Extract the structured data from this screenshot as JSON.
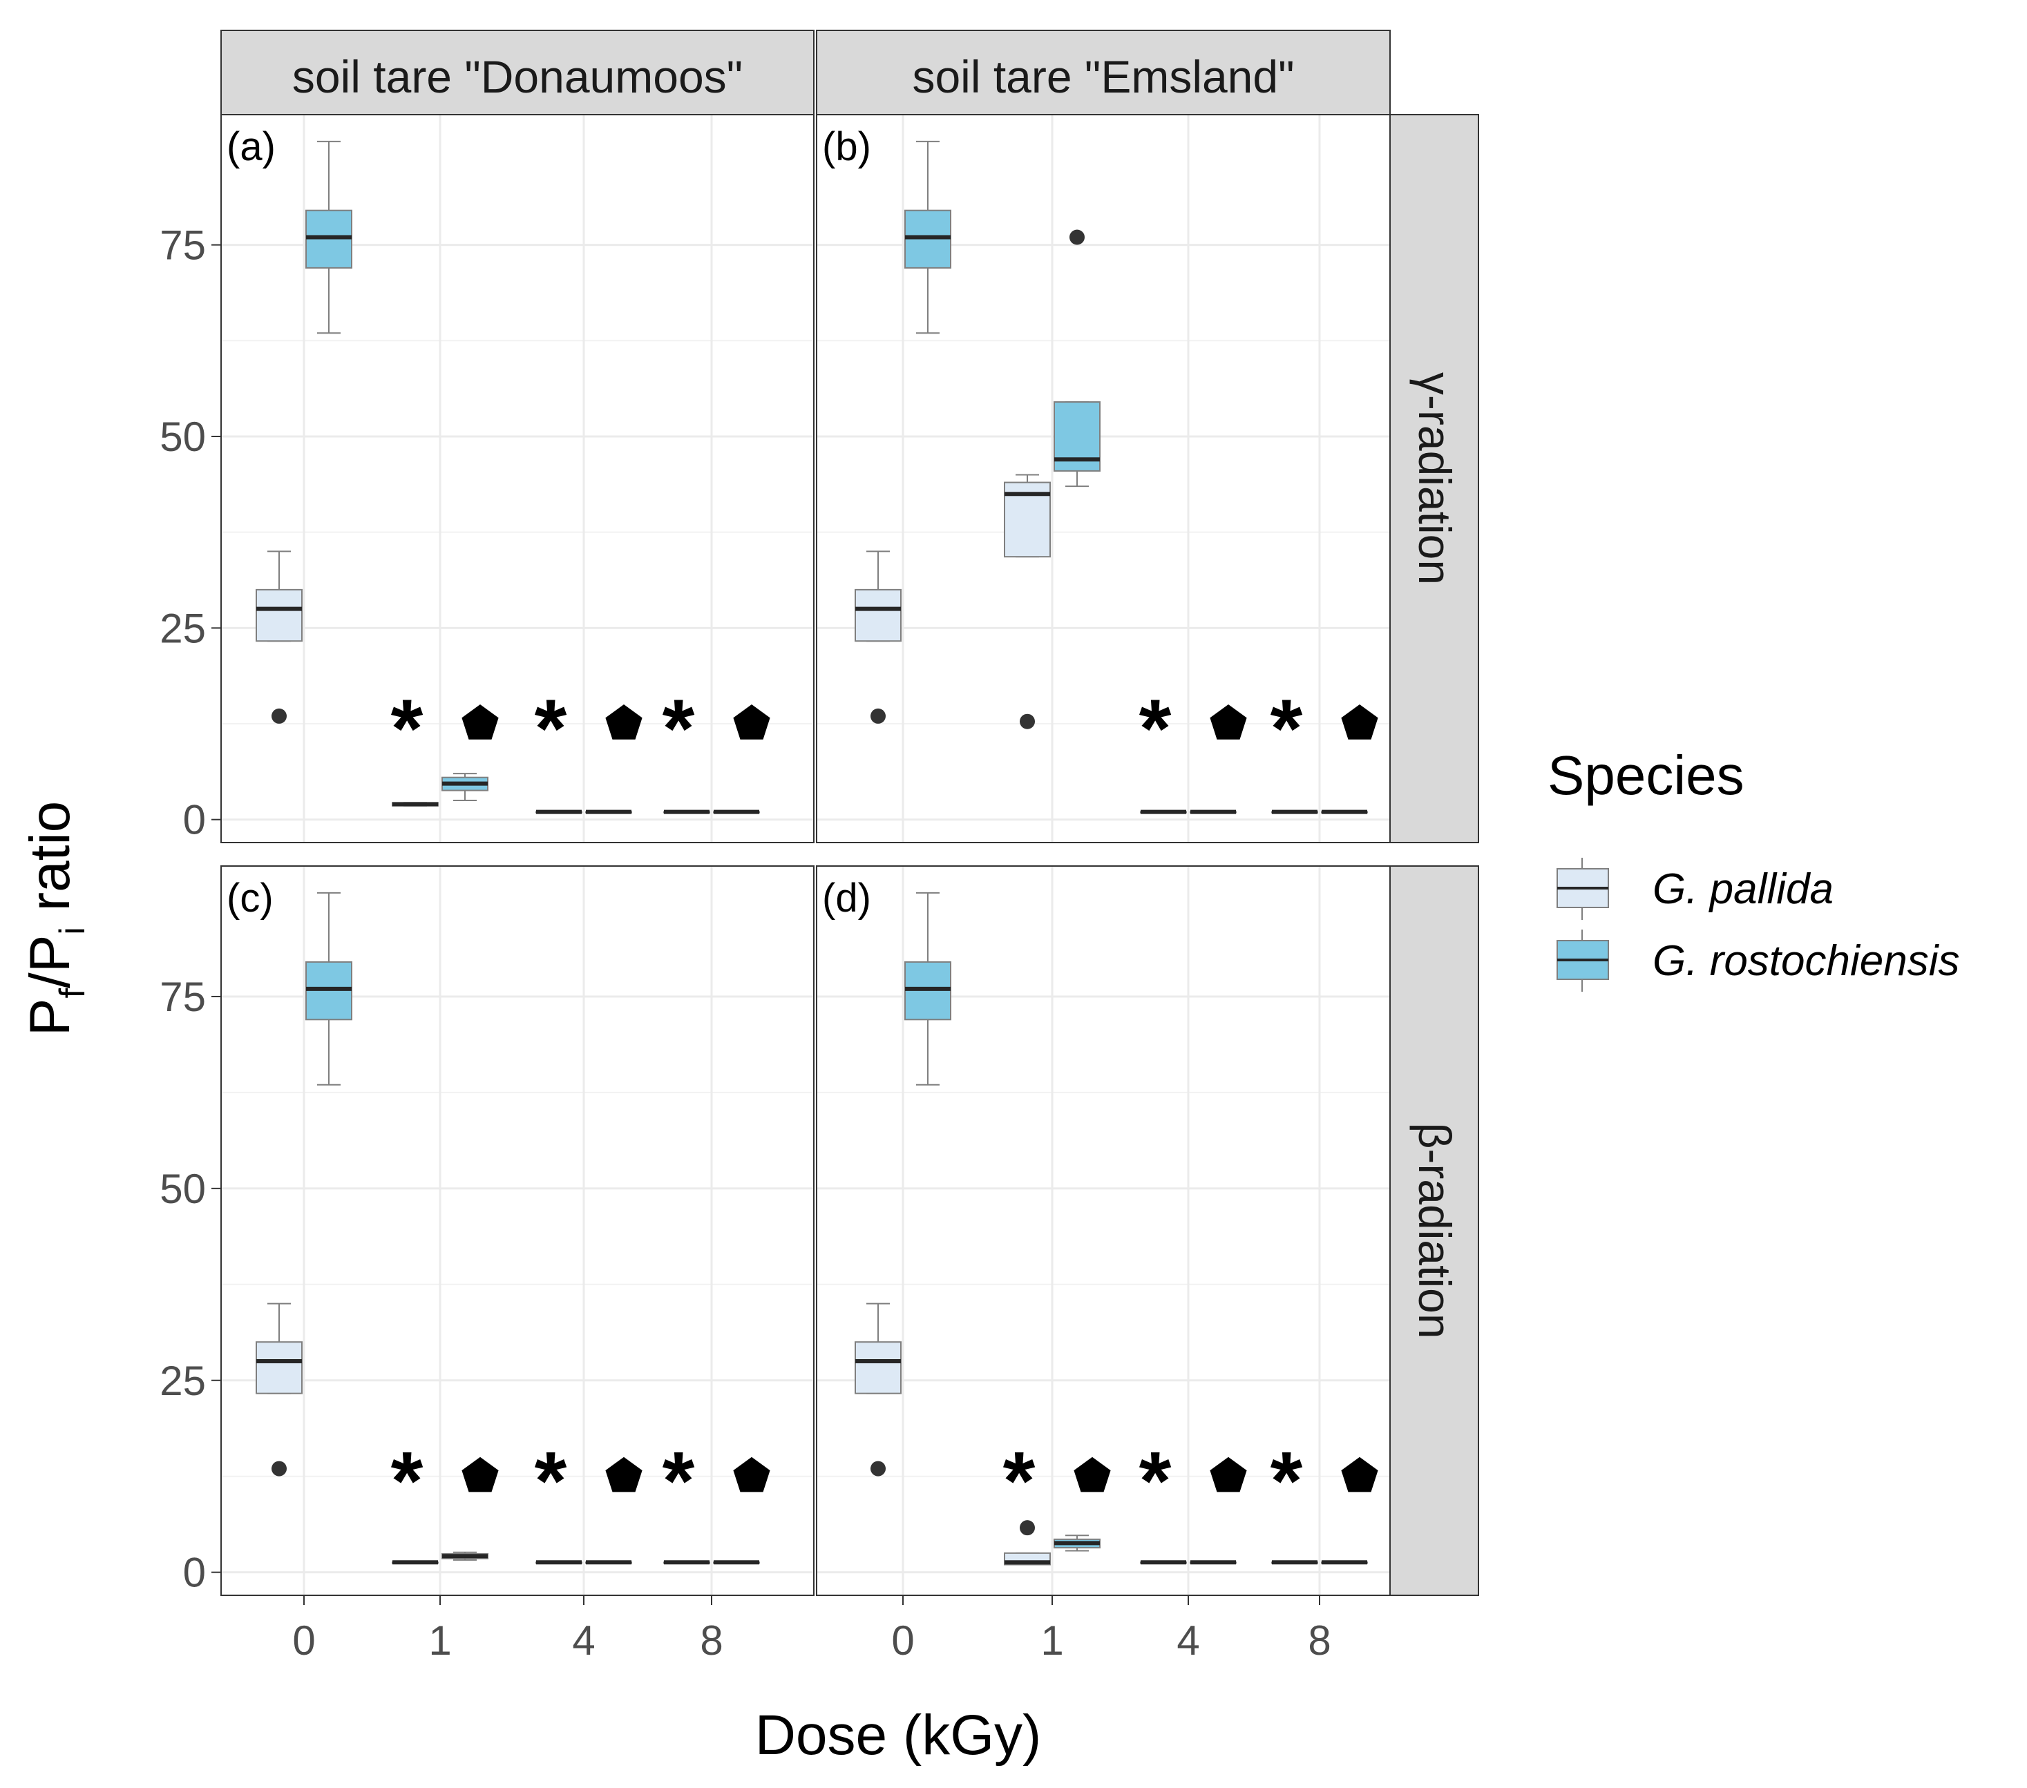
{
  "chart_data": {
    "type": "boxplot",
    "xlabel": "Dose (kGy)",
    "ylabel_main": "P",
    "ylabel_sub_f": "f",
    "ylabel_slash": "/P",
    "ylabel_sub_i": "i",
    "ylabel_tail": " ratio",
    "categories": [
      "0",
      "1",
      "4",
      "8"
    ],
    "yticks": [
      "0",
      "25",
      "50",
      "75"
    ],
    "ylim": [
      -3,
      92
    ],
    "legend": {
      "title": "Species",
      "items": [
        {
          "name": "G. pallida",
          "color": "#dde9f5"
        },
        {
          "name": "G. rostochiensis",
          "color": "#7ec8e3"
        }
      ]
    },
    "columns": [
      "soil tare \"Donaumoos\"",
      "soil tare \"Emsland\""
    ],
    "rows": [
      "γ-radiation",
      "β-radiation"
    ],
    "significance_markers": {
      "G. pallida": "*",
      "G. rostochiensis": "pentagon"
    },
    "panels": [
      {
        "tag": "(a)",
        "row": 0,
        "col": 0,
        "groups": [
          {
            "dose": "0",
            "species": "G. pallida",
            "min": 23.3,
            "q1": 23.3,
            "median": 27.5,
            "q3": 30,
            "max": 35,
            "outliers": [
              13.5
            ]
          },
          {
            "dose": "0",
            "species": "G. rostochiensis",
            "min": 63.5,
            "q1": 72,
            "median": 76,
            "q3": 79.5,
            "max": 88.5,
            "outliers": []
          },
          {
            "dose": "1",
            "species": "G. pallida",
            "min": 1.8,
            "q1": 1.8,
            "median": 2,
            "q3": 2.2,
            "max": 2.2,
            "outliers": []
          },
          {
            "dose": "1",
            "species": "G. rostochiensis",
            "min": 2.5,
            "q1": 3.8,
            "median": 4.7,
            "q3": 5.5,
            "max": 6,
            "outliers": []
          },
          {
            "dose": "4",
            "species": "G. pallida",
            "min": 1,
            "q1": 1,
            "median": 1,
            "q3": 1,
            "max": 1,
            "outliers": []
          },
          {
            "dose": "4",
            "species": "G. rostochiensis",
            "min": 1,
            "q1": 1,
            "median": 1,
            "q3": 1,
            "max": 1,
            "outliers": []
          },
          {
            "dose": "8",
            "species": "G. pallida",
            "min": 1,
            "q1": 1,
            "median": 1,
            "q3": 1,
            "max": 1,
            "outliers": []
          },
          {
            "dose": "8",
            "species": "G. rostochiensis",
            "min": 1,
            "q1": 1,
            "median": 1,
            "q3": 1,
            "max": 1,
            "outliers": []
          }
        ],
        "significant": [
          "1",
          "4",
          "8"
        ]
      },
      {
        "tag": "(b)",
        "row": 0,
        "col": 1,
        "groups": [
          {
            "dose": "0",
            "species": "G. pallida",
            "min": 23.3,
            "q1": 23.3,
            "median": 27.5,
            "q3": 30,
            "max": 35,
            "outliers": [
              13.5
            ]
          },
          {
            "dose": "0",
            "species": "G. rostochiensis",
            "min": 63.5,
            "q1": 72,
            "median": 76,
            "q3": 79.5,
            "max": 88.5,
            "outliers": []
          },
          {
            "dose": "1",
            "species": "G. pallida",
            "min": 34.3,
            "q1": 34.3,
            "median": 42.5,
            "q3": 44,
            "max": 45,
            "outliers": [
              12.8
            ]
          },
          {
            "dose": "1",
            "species": "G. rostochiensis",
            "min": 43.5,
            "q1": 45.5,
            "median": 47,
            "q3": 54.5,
            "max": 54.5,
            "outliers": [
              76
            ]
          },
          {
            "dose": "4",
            "species": "G. pallida",
            "min": 1,
            "q1": 1,
            "median": 1,
            "q3": 1,
            "max": 1,
            "outliers": []
          },
          {
            "dose": "4",
            "species": "G. rostochiensis",
            "min": 1,
            "q1": 1,
            "median": 1,
            "q3": 1,
            "max": 1,
            "outliers": []
          },
          {
            "dose": "8",
            "species": "G. pallida",
            "min": 1,
            "q1": 1,
            "median": 1,
            "q3": 1,
            "max": 1,
            "outliers": []
          },
          {
            "dose": "8",
            "species": "G. rostochiensis",
            "min": 1,
            "q1": 1,
            "median": 1,
            "q3": 1,
            "max": 1,
            "outliers": []
          }
        ],
        "significant": [
          "4",
          "8"
        ]
      },
      {
        "tag": "(c)",
        "row": 1,
        "col": 0,
        "groups": [
          {
            "dose": "0",
            "species": "G. pallida",
            "min": 23.3,
            "q1": 23.3,
            "median": 27.5,
            "q3": 30,
            "max": 35,
            "outliers": [
              13.5
            ]
          },
          {
            "dose": "0",
            "species": "G. rostochiensis",
            "min": 63.5,
            "q1": 72,
            "median": 76,
            "q3": 79.5,
            "max": 88.5,
            "outliers": []
          },
          {
            "dose": "1",
            "species": "G. pallida",
            "min": 1.3,
            "q1": 1.3,
            "median": 1.3,
            "q3": 1.3,
            "max": 1.3,
            "outliers": []
          },
          {
            "dose": "1",
            "species": "G. rostochiensis",
            "min": 1.6,
            "q1": 1.8,
            "median": 2.1,
            "q3": 2.4,
            "max": 2.6,
            "outliers": []
          },
          {
            "dose": "4",
            "species": "G. pallida",
            "min": 1.3,
            "q1": 1.3,
            "median": 1.3,
            "q3": 1.3,
            "max": 1.3,
            "outliers": []
          },
          {
            "dose": "4",
            "species": "G. rostochiensis",
            "min": 1.3,
            "q1": 1.3,
            "median": 1.3,
            "q3": 1.3,
            "max": 1.3,
            "outliers": []
          },
          {
            "dose": "8",
            "species": "G. pallida",
            "min": 1.3,
            "q1": 1.3,
            "median": 1.3,
            "q3": 1.3,
            "max": 1.3,
            "outliers": []
          },
          {
            "dose": "8",
            "species": "G. rostochiensis",
            "min": 1.3,
            "q1": 1.3,
            "median": 1.3,
            "q3": 1.3,
            "max": 1.3,
            "outliers": []
          }
        ],
        "significant": [
          "1",
          "4",
          "8"
        ]
      },
      {
        "tag": "(d)",
        "row": 1,
        "col": 1,
        "groups": [
          {
            "dose": "0",
            "species": "G. pallida",
            "min": 23.3,
            "q1": 23.3,
            "median": 27.5,
            "q3": 30,
            "max": 35,
            "outliers": [
              13.5
            ]
          },
          {
            "dose": "0",
            "species": "G. rostochiensis",
            "min": 63.5,
            "q1": 72,
            "median": 76,
            "q3": 79.5,
            "max": 88.5,
            "outliers": []
          },
          {
            "dose": "1",
            "species": "G. pallida",
            "min": 1,
            "q1": 1,
            "median": 1.3,
            "q3": 2.5,
            "max": 2.5,
            "outliers": [
              5.8
            ]
          },
          {
            "dose": "1",
            "species": "G. rostochiensis",
            "min": 2.8,
            "q1": 3.2,
            "median": 3.8,
            "q3": 4.3,
            "max": 4.8,
            "outliers": []
          },
          {
            "dose": "4",
            "species": "G. pallida",
            "min": 1.3,
            "q1": 1.3,
            "median": 1.3,
            "q3": 1.3,
            "max": 1.3,
            "outliers": []
          },
          {
            "dose": "4",
            "species": "G. rostochiensis",
            "min": 1.3,
            "q1": 1.3,
            "median": 1.3,
            "q3": 1.3,
            "max": 1.3,
            "outliers": []
          },
          {
            "dose": "8",
            "species": "G. pallida",
            "min": 1.3,
            "q1": 1.3,
            "median": 1.3,
            "q3": 1.3,
            "max": 1.3,
            "outliers": []
          },
          {
            "dose": "8",
            "species": "G. rostochiensis",
            "min": 1.3,
            "q1": 1.3,
            "median": 1.3,
            "q3": 1.3,
            "max": 1.3,
            "outliers": []
          }
        ],
        "significant": [
          "1",
          "4",
          "8"
        ]
      }
    ]
  }
}
